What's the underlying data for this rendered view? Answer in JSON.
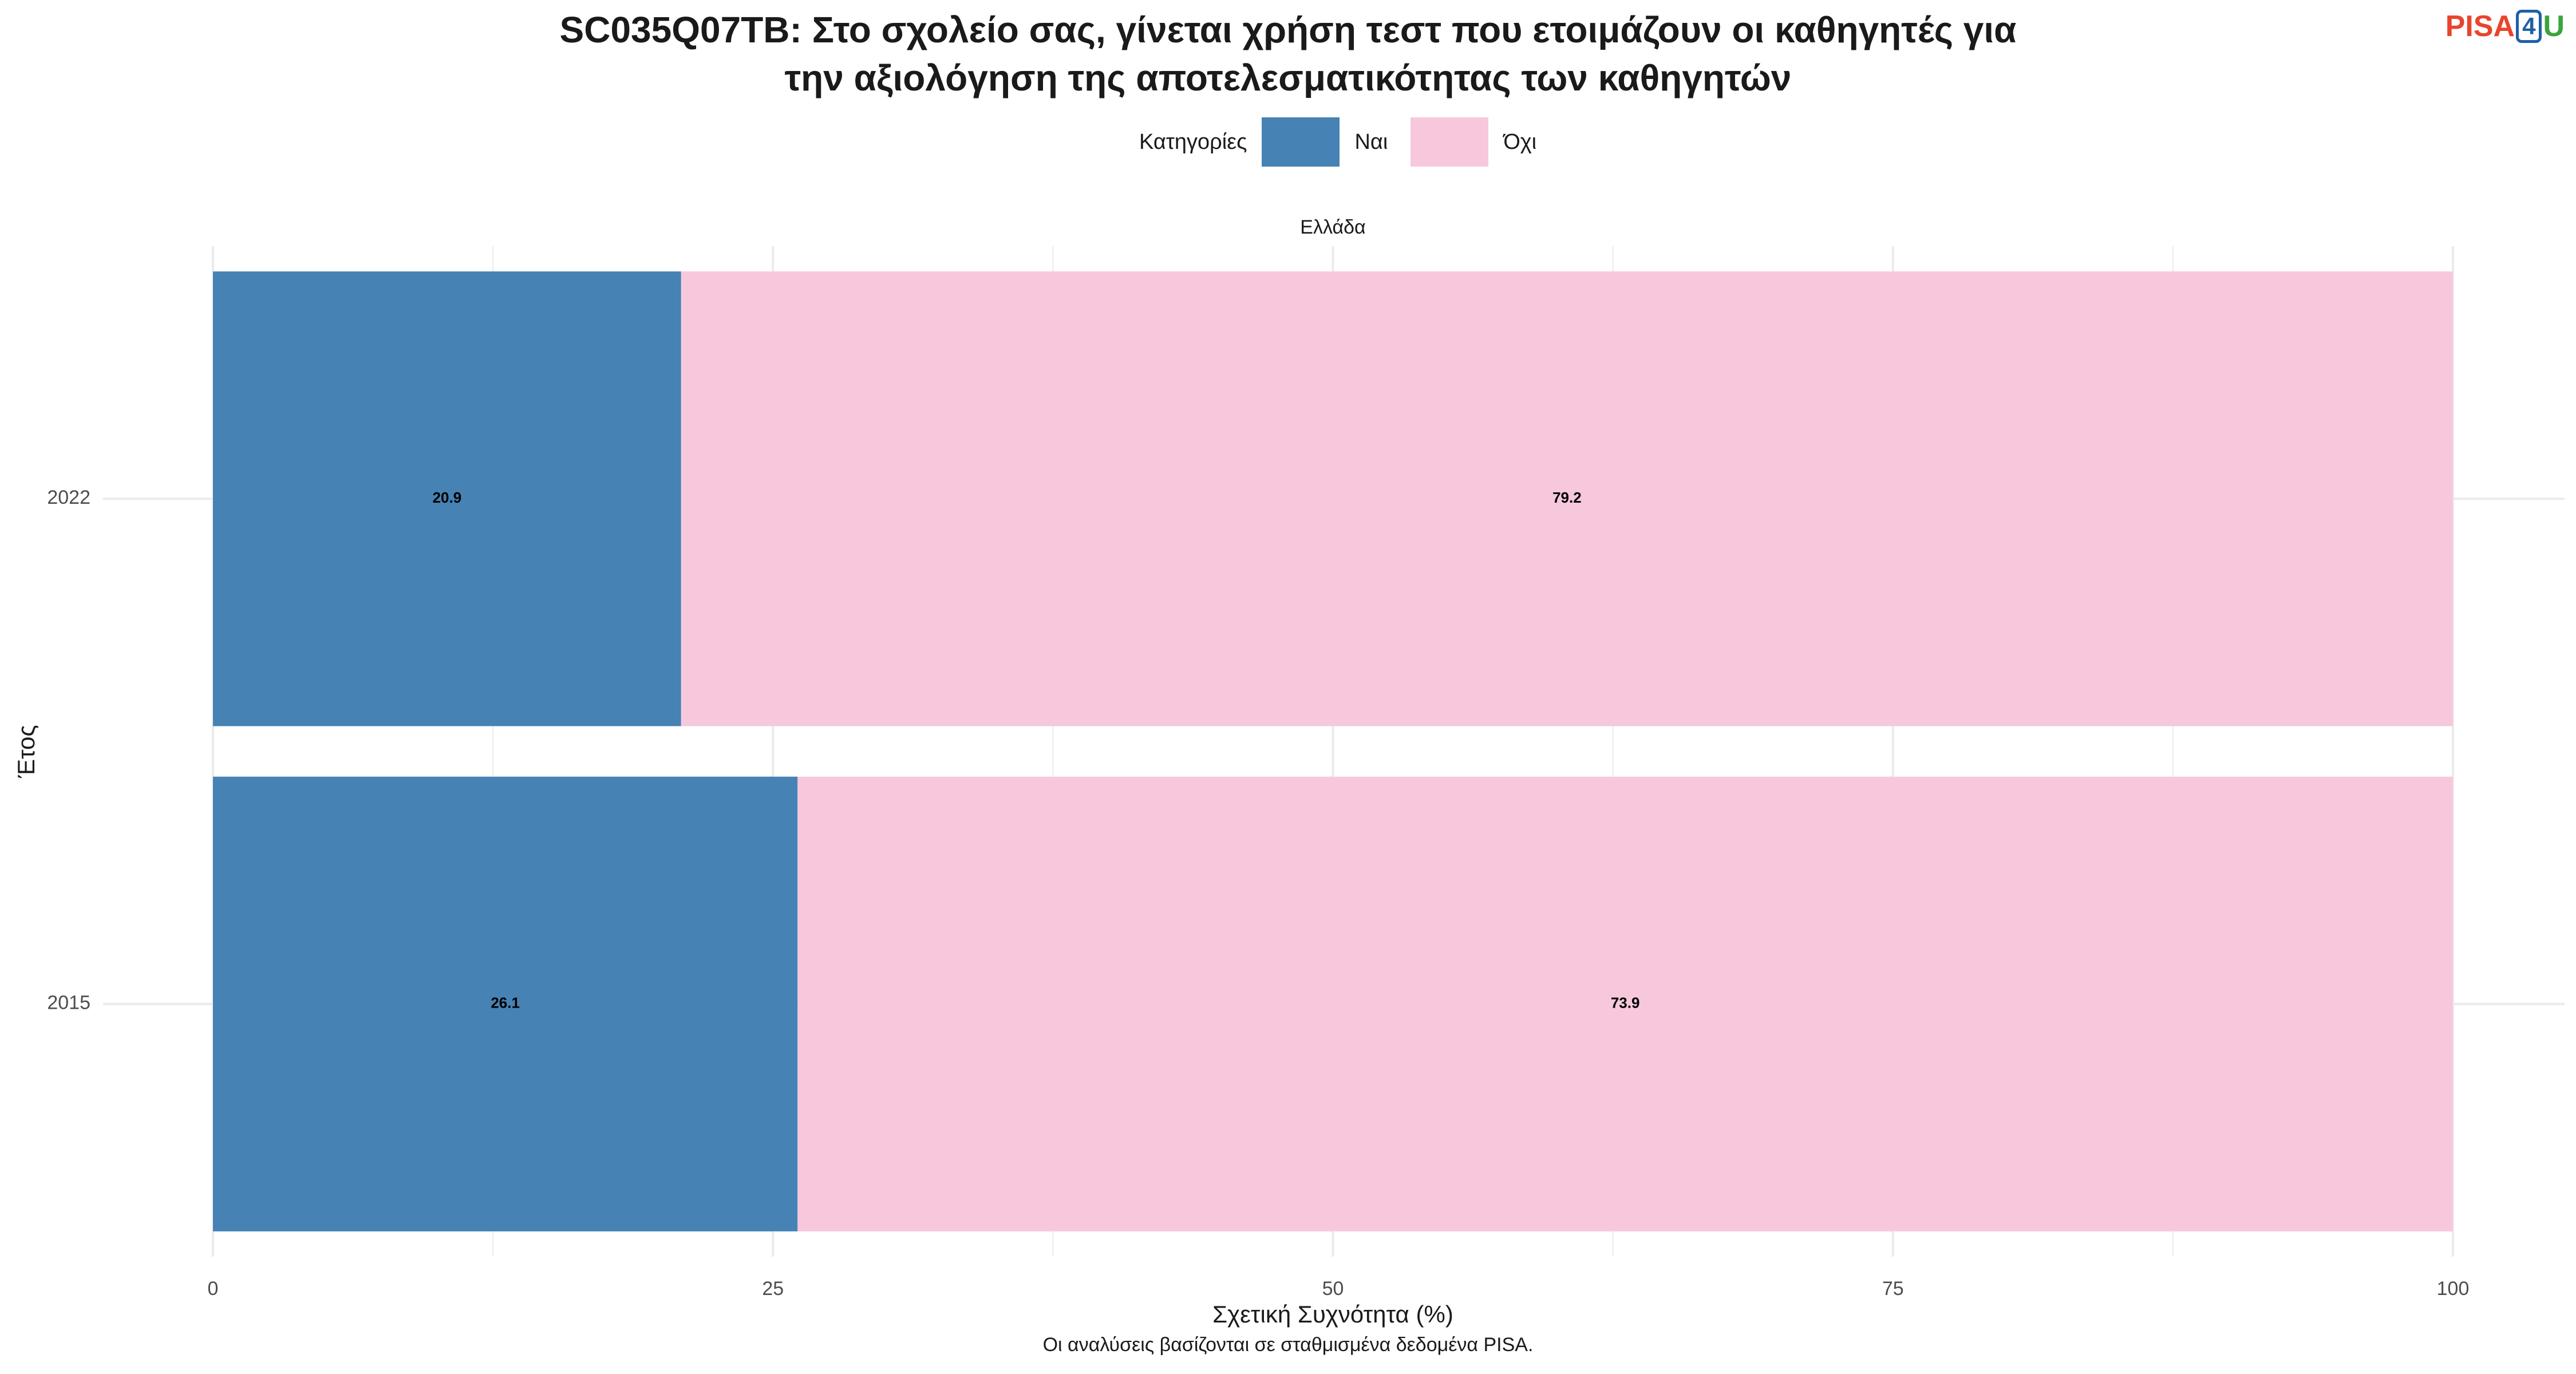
{
  "title_lines": [
    "SC035Q07TB: Στο σχολείο σας, γίνεται χρήση τεστ που ετοιμάζουν οι καθηγητές για",
    "την αξιολόγηση της αποτελεσματικότητας των καθηγητών"
  ],
  "logo": {
    "part1": "PISA",
    "part2": "4",
    "part3": "U"
  },
  "legend": {
    "title": "Κατηγορίες"
  },
  "caption": "Οι αναλύσεις βασίζονται σε σταθμισμένα δεδομένα PISA.",
  "colors": {
    "Ναι": "#4682b4",
    "Όχι": "#f7c8dc",
    "grid": "#ebebeb"
  },
  "chart_data": {
    "type": "bar",
    "orientation": "horizontal",
    "stacked": true,
    "facet": "Ελλάδα",
    "categories": [
      "2022",
      "2015"
    ],
    "series": [
      {
        "name": "Ναι",
        "values": [
          20.9,
          26.1
        ]
      },
      {
        "name": "Όχι",
        "values": [
          79.2,
          73.9
        ]
      }
    ],
    "xlabel": "Σχετική Συχνότητα (%)",
    "ylabel": "Έτος",
    "xlim": [
      0,
      100
    ],
    "xticks": [
      0,
      25,
      50,
      75,
      100
    ],
    "grid": true,
    "legend_position": "top"
  }
}
